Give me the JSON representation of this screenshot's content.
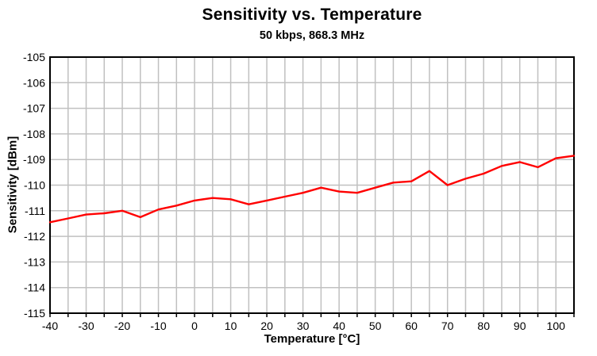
{
  "chart": {
    "background_color": "#ffffff",
    "grid_color": "#c0c0c0",
    "axis_color": "#000000",
    "text_color": "#000000",
    "line_color": "#ff0000"
  },
  "chart_data": {
    "type": "line",
    "title": "Sensitivity vs. Temperature",
    "subtitle": "50 kbps, 868.3 MHz",
    "xlabel": "Temperature [°C]",
    "ylabel": "Sensitivity [dBm]",
    "xlim": [
      -40,
      105
    ],
    "ylim": [
      -115,
      -105
    ],
    "x_ticks": [
      -40,
      -30,
      -20,
      -10,
      0,
      10,
      20,
      30,
      40,
      50,
      60,
      70,
      80,
      90,
      100
    ],
    "y_ticks": [
      -105,
      -106,
      -107,
      -108,
      -109,
      -110,
      -111,
      -112,
      -113,
      -114,
      -115
    ],
    "x_grid_step": 5,
    "y_grid_step": 1,
    "grid": true,
    "legend_position": "none",
    "series": [
      {
        "name": "Sensitivity",
        "color": "#ff0000",
        "x": [
          -40,
          -35,
          -30,
          -25,
          -20,
          -15,
          -10,
          -5,
          0,
          5,
          10,
          15,
          20,
          25,
          30,
          35,
          40,
          45,
          50,
          55,
          60,
          65,
          70,
          75,
          80,
          85,
          90,
          95,
          100,
          105
        ],
        "y": [
          -111.45,
          -111.3,
          -111.15,
          -111.1,
          -111.0,
          -111.25,
          -110.95,
          -110.8,
          -110.6,
          -110.5,
          -110.55,
          -110.75,
          -110.6,
          -110.45,
          -110.3,
          -110.1,
          -110.25,
          -110.3,
          -110.1,
          -109.9,
          -109.85,
          -109.45,
          -110.0,
          -109.75,
          -109.55,
          -109.25,
          -109.1,
          -109.3,
          -108.95,
          -108.85
        ]
      }
    ]
  }
}
